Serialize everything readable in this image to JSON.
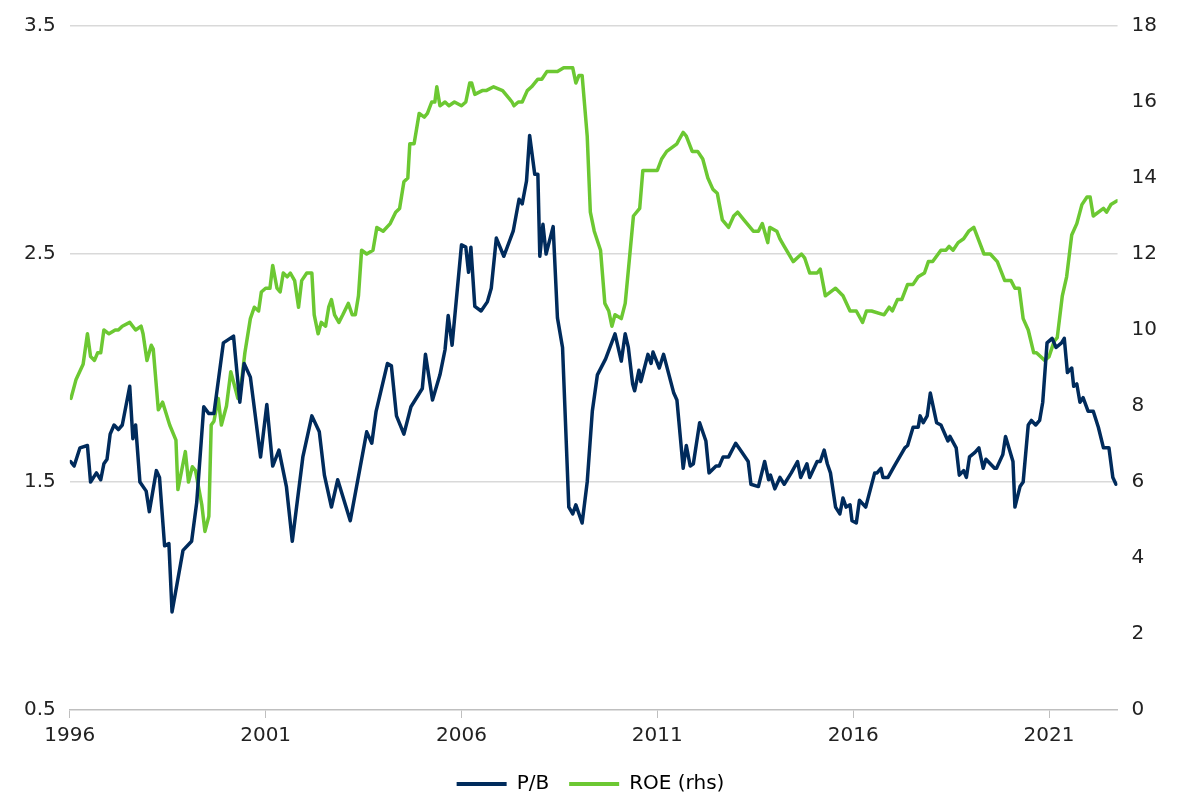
{
  "chart_data": {
    "type": "line",
    "xlim": [
      1996,
      2022.75
    ],
    "xticks": [
      1996,
      2001,
      2006,
      2011,
      2016,
      2021
    ],
    "ylim": [
      0.5,
      3.5
    ],
    "yticks": [
      0.5,
      1.5,
      2.5,
      3.5
    ],
    "y2lim": [
      0,
      18
    ],
    "y2ticks": [
      0,
      2,
      4,
      6,
      8,
      10,
      12,
      14,
      16,
      18
    ],
    "grid": "y",
    "legend": "bottom",
    "series": [
      {
        "name": "P/B",
        "color": "#002b5c",
        "x": [
          1996.02,
          1996.11,
          1996.26,
          1996.45,
          1996.53,
          1996.68,
          1996.79,
          1996.87,
          1996.95,
          1997.03,
          1997.13,
          1997.24,
          1997.34,
          1997.53,
          1997.61,
          1997.68,
          1997.79,
          1997.95,
          1998.03,
          1998.21,
          1998.29,
          1998.42,
          1998.53,
          1998.61,
          1998.89,
          1999.11,
          1999.24,
          1999.42,
          1999.55,
          1999.68,
          1999.92,
          2000.18,
          2000.34,
          2000.45,
          2000.61,
          2000.87,
          2001.03,
          2001.18,
          2001.34,
          2001.53,
          2001.68,
          2001.95,
          2002.18,
          2002.37,
          2002.5,
          2002.68,
          2002.84,
          2003.16,
          2003.58,
          2003.71,
          2003.82,
          2004.11,
          2004.21,
          2004.34,
          2004.53,
          2004.71,
          2005.0,
          2005.08,
          2005.26,
          2005.45,
          2005.58,
          2005.66,
          2005.76,
          2006.0,
          2006.11,
          2006.18,
          2006.24,
          2006.34,
          2006.5,
          2006.66,
          2006.76,
          2006.89,
          2007.08,
          2007.32,
          2007.47,
          2007.55,
          2007.66,
          2007.74,
          2007.87,
          2007.95,
          2008.0,
          2008.08,
          2008.16,
          2008.34,
          2008.45,
          2008.58,
          2008.74,
          2008.84,
          2008.92,
          2009.08,
          2009.21,
          2009.34,
          2009.47,
          2009.68,
          2009.92,
          2010.08,
          2010.18,
          2010.26,
          2010.37,
          2010.42,
          2010.53,
          2010.58,
          2010.76,
          2010.84,
          2010.89,
          2011.05,
          2011.16,
          2011.42,
          2011.5,
          2011.66,
          2011.74,
          2011.84,
          2011.92,
          2012.08,
          2012.24,
          2012.32,
          2012.5,
          2012.58,
          2012.68,
          2012.82,
          2013.0,
          2013.16,
          2013.32,
          2013.39,
          2013.58,
          2013.74,
          2013.84,
          2013.89,
          2014.0,
          2014.13,
          2014.24,
          2014.42,
          2014.58,
          2014.66,
          2014.82,
          2014.89,
          2015.08,
          2015.16,
          2015.26,
          2015.34,
          2015.42,
          2015.55,
          2015.66,
          2015.74,
          2015.82,
          2015.92,
          2015.97,
          2016.08,
          2016.16,
          2016.32,
          2016.55,
          2016.61,
          2016.71,
          2016.76,
          2016.89,
          2017.05,
          2017.32,
          2017.39,
          2017.53,
          2017.66,
          2017.71,
          2017.79,
          2017.89,
          2017.97,
          2018.13,
          2018.24,
          2018.42,
          2018.47,
          2018.63,
          2018.71,
          2018.82,
          2018.89,
          2018.97,
          2019.11,
          2019.21,
          2019.32,
          2019.39,
          2019.61,
          2019.66,
          2019.82,
          2019.89,
          2020.08,
          2020.13,
          2020.26,
          2020.34,
          2020.47,
          2020.55,
          2020.66,
          2020.76,
          2020.84,
          2020.95,
          2021.08,
          2021.18,
          2021.32,
          2021.39,
          2021.47,
          2021.58,
          2021.63,
          2021.71,
          2021.79,
          2021.87,
          2022.0,
          2022.13,
          2022.26,
          2022.39,
          2022.53,
          2022.63,
          2022.71
        ],
        "values": [
          1.59,
          1.57,
          1.65,
          1.66,
          1.5,
          1.54,
          1.51,
          1.58,
          1.6,
          1.71,
          1.75,
          1.73,
          1.75,
          1.92,
          1.69,
          1.75,
          1.5,
          1.46,
          1.37,
          1.55,
          1.52,
          1.22,
          1.23,
          0.93,
          1.2,
          1.24,
          1.41,
          1.83,
          1.8,
          1.8,
          2.11,
          2.14,
          1.85,
          2.02,
          1.96,
          1.61,
          1.84,
          1.57,
          1.64,
          1.48,
          1.24,
          1.61,
          1.79,
          1.72,
          1.53,
          1.39,
          1.51,
          1.33,
          1.72,
          1.67,
          1.81,
          2.02,
          2.01,
          1.79,
          1.71,
          1.83,
          1.91,
          2.06,
          1.86,
          1.97,
          2.08,
          2.23,
          2.1,
          2.54,
          2.53,
          2.42,
          2.53,
          2.27,
          2.25,
          2.29,
          2.35,
          2.57,
          2.49,
          2.6,
          2.74,
          2.72,
          2.82,
          3.02,
          2.85,
          2.85,
          2.49,
          2.63,
          2.5,
          2.62,
          2.22,
          2.09,
          1.39,
          1.36,
          1.4,
          1.32,
          1.5,
          1.81,
          1.97,
          2.04,
          2.15,
          2.03,
          2.15,
          2.09,
          1.93,
          1.9,
          1.99,
          1.94,
          2.06,
          2.02,
          2.07,
          2.0,
          2.06,
          1.89,
          1.86,
          1.56,
          1.66,
          1.57,
          1.58,
          1.76,
          1.68,
          1.54,
          1.57,
          1.57,
          1.61,
          1.61,
          1.67,
          1.63,
          1.59,
          1.49,
          1.48,
          1.59,
          1.51,
          1.53,
          1.47,
          1.52,
          1.49,
          1.54,
          1.59,
          1.52,
          1.58,
          1.52,
          1.59,
          1.59,
          1.64,
          1.58,
          1.54,
          1.39,
          1.36,
          1.43,
          1.39,
          1.4,
          1.33,
          1.32,
          1.42,
          1.39,
          1.54,
          1.54,
          1.56,
          1.52,
          1.52,
          1.57,
          1.65,
          1.66,
          1.74,
          1.74,
          1.79,
          1.76,
          1.79,
          1.89,
          1.76,
          1.75,
          1.68,
          1.7,
          1.65,
          1.53,
          1.55,
          1.52,
          1.61,
          1.63,
          1.65,
          1.56,
          1.6,
          1.56,
          1.56,
          1.62,
          1.7,
          1.59,
          1.39,
          1.48,
          1.5,
          1.75,
          1.77,
          1.75,
          1.77,
          1.85,
          2.11,
          2.13,
          2.09,
          2.11,
          2.13,
          1.98,
          2.0,
          1.92,
          1.93,
          1.85,
          1.87,
          1.81,
          1.81,
          1.74,
          1.65,
          1.65,
          1.52,
          1.49
        ]
      },
      {
        "name": "ROE (rhs)",
        "color": "#6cc832",
        "axis": "y2",
        "x": [
          1996.03,
          1996.16,
          1996.34,
          1996.45,
          1996.53,
          1996.63,
          1996.71,
          1996.79,
          1996.87,
          1997.0,
          1997.16,
          1997.24,
          1997.34,
          1997.53,
          1997.68,
          1997.82,
          1997.87,
          1997.97,
          1998.08,
          1998.13,
          1998.26,
          1998.37,
          1998.55,
          1998.71,
          1998.76,
          1998.95,
          1999.03,
          1999.13,
          1999.21,
          1999.37,
          1999.45,
          1999.55,
          1999.61,
          1999.68,
          1999.79,
          1999.87,
          2000.0,
          2000.11,
          2000.24,
          2000.29,
          2000.39,
          2000.47,
          2000.61,
          2000.71,
          2000.82,
          2000.89,
          2001.0,
          2001.11,
          2001.18,
          2001.29,
          2001.37,
          2001.45,
          2001.55,
          2001.63,
          2001.74,
          2001.84,
          2001.92,
          2002.05,
          2002.18,
          2002.24,
          2002.34,
          2002.42,
          2002.53,
          2002.61,
          2002.68,
          2002.76,
          2002.87,
          2002.97,
          2003.11,
          2003.21,
          2003.29,
          2003.37,
          2003.45,
          2003.58,
          2003.74,
          2003.84,
          2004.0,
          2004.18,
          2004.32,
          2004.42,
          2004.53,
          2004.63,
          2004.68,
          2004.79,
          2004.92,
          2005.05,
          2005.13,
          2005.24,
          2005.32,
          2005.37,
          2005.45,
          2005.58,
          2005.68,
          2005.82,
          2006.0,
          2006.11,
          2006.21,
          2006.26,
          2006.34,
          2006.53,
          2006.63,
          2006.82,
          2007.05,
          2007.21,
          2007.29,
          2007.34,
          2007.45,
          2007.55,
          2007.68,
          2007.79,
          2007.95,
          2008.05,
          2008.18,
          2008.32,
          2008.45,
          2008.61,
          2008.74,
          2008.84,
          2008.92,
          2009.0,
          2009.08,
          2009.21,
          2009.29,
          2009.39,
          2009.55,
          2009.66,
          2009.76,
          2009.84,
          2009.92,
          2010.08,
          2010.18,
          2010.29,
          2010.39,
          2010.55,
          2010.63,
          2010.76,
          2010.84,
          2011.0,
          2011.11,
          2011.24,
          2011.37,
          2011.5,
          2011.55,
          2011.66,
          2011.74,
          2011.89,
          2012.03,
          2012.16,
          2012.29,
          2012.42,
          2012.53,
          2012.66,
          2012.82,
          2012.95,
          2013.05,
          2013.21,
          2013.45,
          2013.58,
          2013.68,
          2013.82,
          2013.87,
          2014.05,
          2014.13,
          2014.24,
          2014.47,
          2014.68,
          2014.76,
          2014.89,
          2015.08,
          2015.16,
          2015.29,
          2015.55,
          2015.74,
          2015.92,
          2016.08,
          2016.24,
          2016.34,
          2016.47,
          2016.79,
          2016.92,
          2017.0,
          2017.13,
          2017.24,
          2017.39,
          2017.53,
          2017.66,
          2017.82,
          2017.92,
          2018.03,
          2018.24,
          2018.37,
          2018.45,
          2018.55,
          2018.68,
          2018.82,
          2018.95,
          2019.08,
          2019.34,
          2019.5,
          2019.68,
          2019.87,
          2020.03,
          2020.13,
          2020.24,
          2020.34,
          2020.47,
          2020.61,
          2020.68,
          2020.89,
          2021.0,
          2021.13,
          2021.21,
          2021.34,
          2021.45,
          2021.58,
          2021.71,
          2021.84,
          2021.97,
          2022.05,
          2022.13,
          2022.39,
          2022.47,
          2022.58,
          2022.74
        ],
        "values": [
          8.2,
          8.7,
          9.1,
          9.9,
          9.3,
          9.2,
          9.4,
          9.4,
          10.0,
          9.9,
          10.0,
          10.0,
          10.1,
          10.2,
          10.0,
          10.1,
          9.9,
          9.2,
          9.6,
          9.5,
          7.9,
          8.1,
          7.5,
          7.1,
          5.8,
          6.8,
          6.0,
          6.4,
          6.3,
          5.4,
          4.7,
          5.1,
          7.5,
          7.6,
          8.2,
          7.5,
          8.0,
          8.9,
          8.4,
          8.2,
          8.7,
          9.4,
          10.3,
          10.6,
          10.5,
          11.0,
          11.1,
          11.1,
          11.7,
          11.1,
          11.0,
          11.5,
          11.4,
          11.5,
          11.3,
          10.6,
          11.3,
          11.5,
          11.5,
          10.4,
          9.9,
          10.2,
          10.1,
          10.6,
          10.8,
          10.4,
          10.2,
          10.4,
          10.7,
          10.4,
          10.4,
          10.9,
          12.1,
          12.0,
          12.1,
          12.7,
          12.6,
          12.8,
          13.1,
          13.2,
          13.9,
          14.0,
          14.9,
          14.9,
          15.7,
          15.6,
          15.7,
          16.0,
          16.0,
          16.4,
          15.9,
          16.0,
          15.9,
          16.0,
          15.9,
          16.0,
          16.5,
          16.5,
          16.2,
          16.3,
          16.3,
          16.4,
          16.3,
          16.1,
          16.0,
          15.9,
          16.0,
          16.0,
          16.3,
          16.4,
          16.6,
          16.6,
          16.8,
          16.8,
          16.8,
          16.9,
          16.9,
          16.9,
          16.5,
          16.7,
          16.7,
          15.1,
          13.1,
          12.6,
          12.1,
          10.7,
          10.5,
          10.1,
          10.4,
          10.3,
          10.7,
          11.9,
          13.0,
          13.2,
          14.2,
          14.2,
          14.2,
          14.2,
          14.5,
          14.7,
          14.8,
          14.9,
          15.0,
          15.2,
          15.1,
          14.7,
          14.7,
          14.5,
          14.0,
          13.7,
          13.6,
          12.9,
          12.7,
          13.0,
          13.1,
          12.9,
          12.6,
          12.6,
          12.8,
          12.3,
          12.7,
          12.6,
          12.4,
          12.2,
          11.8,
          12.0,
          11.9,
          11.5,
          11.5,
          11.6,
          10.9,
          11.1,
          10.9,
          10.5,
          10.5,
          10.2,
          10.5,
          10.5,
          10.4,
          10.6,
          10.5,
          10.8,
          10.8,
          11.2,
          11.2,
          11.4,
          11.5,
          11.8,
          11.8,
          12.1,
          12.1,
          12.2,
          12.1,
          12.3,
          12.4,
          12.6,
          12.7,
          12.0,
          12.0,
          11.8,
          11.3,
          11.3,
          11.1,
          11.1,
          10.3,
          10.0,
          9.4,
          9.4,
          9.2,
          9.3,
          9.7,
          9.8,
          10.9,
          11.4,
          12.5,
          12.8,
          13.3,
          13.5,
          13.5,
          13.0,
          13.2,
          13.1,
          13.3,
          13.4
        ]
      }
    ]
  }
}
